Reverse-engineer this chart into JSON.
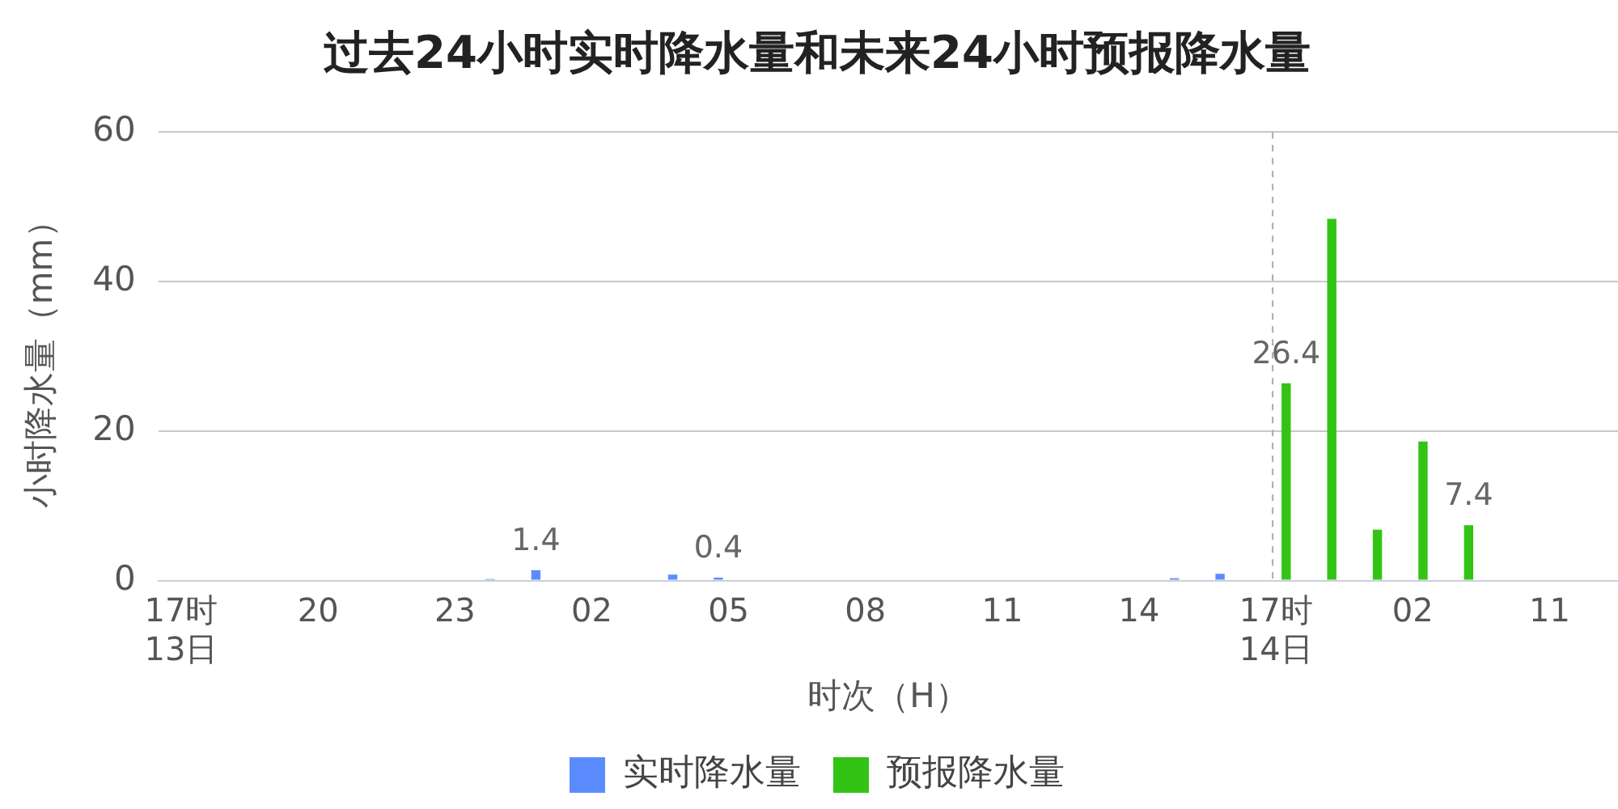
{
  "chart_data": {
    "type": "bar",
    "title": "过去24小时实时降水量和未来24小时预报降水量",
    "xlabel": "时次（H）",
    "ylabel": "小时降水量（mm）",
    "categories": [
      "17时\n13日",
      null,
      null,
      "20",
      null,
      null,
      "23",
      null,
      null,
      "02",
      null,
      null,
      "05",
      null,
      null,
      "08",
      null,
      null,
      "11",
      null,
      null,
      "14",
      null,
      null,
      "17时\n14日",
      null,
      null,
      "02",
      null,
      null,
      "11",
      null
    ],
    "series": [
      {
        "name": "实时降水量",
        "color": "#5b8cff",
        "values": [
          null,
          null,
          null,
          null,
          null,
          null,
          null,
          0.2,
          1.4,
          null,
          null,
          0.8,
          0.4,
          null,
          null,
          null,
          null,
          null,
          null,
          null,
          null,
          null,
          0.3,
          0.9,
          null,
          null,
          null,
          null,
          null,
          null,
          null,
          null
        ],
        "value_labels": [
          null,
          null,
          null,
          null,
          null,
          null,
          null,
          null,
          "1.4",
          null,
          null,
          null,
          "0.4",
          null,
          null,
          null,
          null,
          null,
          null,
          null,
          null,
          null,
          null,
          null,
          null,
          null,
          null,
          null,
          null,
          null,
          null,
          null
        ]
      },
      {
        "name": "预报降水量",
        "color": "#33c314",
        "values": [
          null,
          null,
          null,
          null,
          null,
          null,
          null,
          null,
          null,
          null,
          null,
          null,
          null,
          null,
          null,
          null,
          null,
          null,
          null,
          null,
          null,
          null,
          null,
          null,
          26.4,
          48.4,
          6.8,
          18.6,
          7.4,
          null,
          null,
          null
        ],
        "value_labels": [
          null,
          null,
          null,
          null,
          null,
          null,
          null,
          null,
          null,
          null,
          null,
          null,
          null,
          null,
          null,
          null,
          null,
          null,
          null,
          null,
          null,
          null,
          null,
          null,
          "26.4",
          null,
          null,
          null,
          "7.4",
          null,
          null,
          null
        ]
      }
    ],
    "ylim": [
      0,
      60
    ],
    "yticks": [
      0,
      20,
      40,
      60
    ],
    "grid": "y",
    "legend": "bottom",
    "ref_lines": [
      {
        "axis": "x",
        "value": "17时\n14日",
        "color": "#aaaaaa",
        "line_style": "dashed"
      }
    ]
  }
}
